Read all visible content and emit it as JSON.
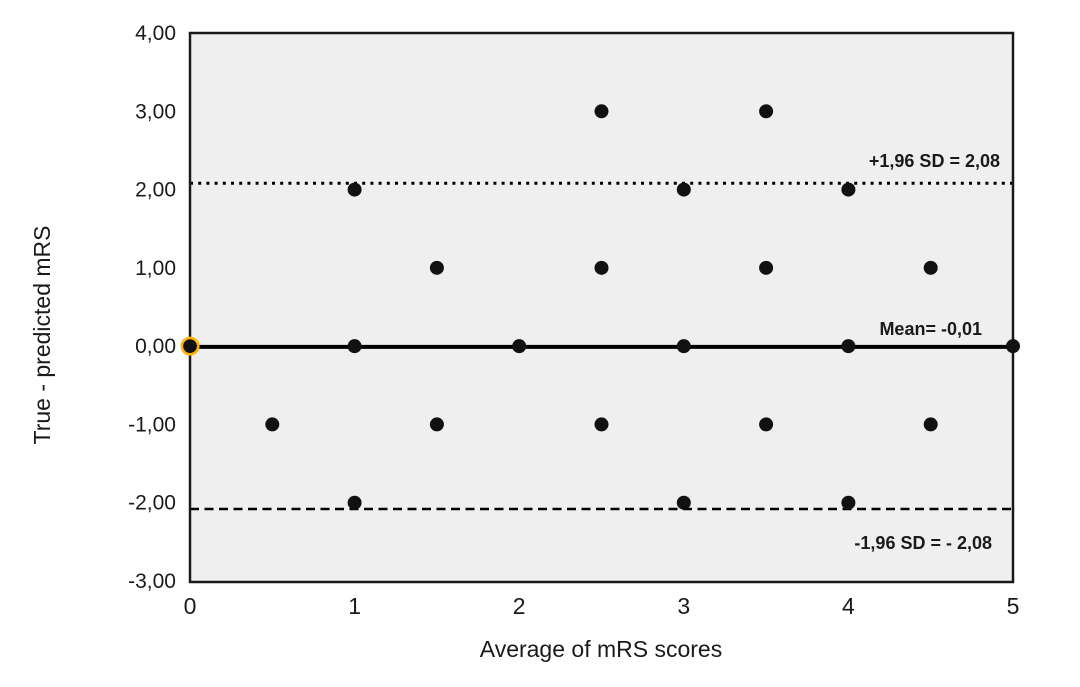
{
  "chart_data": {
    "type": "scatter",
    "title": "",
    "xlabel": "Average of mRS scores",
    "ylabel": "True - predicted mRS",
    "xlim": [
      0,
      5
    ],
    "ylim": [
      -3,
      4
    ],
    "grid": false,
    "legend": false,
    "x_ticks": [
      {
        "value": 0,
        "label": "0"
      },
      {
        "value": 1,
        "label": "1"
      },
      {
        "value": 2,
        "label": "2"
      },
      {
        "value": 3,
        "label": "3"
      },
      {
        "value": 4,
        "label": "4"
      },
      {
        "value": 5,
        "label": "5"
      }
    ],
    "y_ticks": [
      {
        "value": 4,
        "label": "4,00"
      },
      {
        "value": 3,
        "label": "3,00"
      },
      {
        "value": 2,
        "label": "2,00"
      },
      {
        "value": 1,
        "label": "1,00"
      },
      {
        "value": 0,
        "label": "0,00"
      },
      {
        "value": -1,
        "label": "-1,00"
      },
      {
        "value": -2,
        "label": "-2,00"
      },
      {
        "value": -3,
        "label": "-3,00"
      }
    ],
    "reference_lines": [
      {
        "name": "upper-limit",
        "value": 2.08,
        "style": "dotted",
        "label": "+1,96 SD = 2,08"
      },
      {
        "name": "mean",
        "value": -0.01,
        "style": "solid",
        "label": "Mean= -0,01"
      },
      {
        "name": "lower-limit",
        "value": -2.08,
        "style": "dashed",
        "label": "-1,96 SD = - 2,08"
      }
    ],
    "points": [
      [
        2.5,
        3
      ],
      [
        3.5,
        3
      ],
      [
        1,
        2
      ],
      [
        3,
        2
      ],
      [
        4,
        2
      ],
      [
        1.5,
        1
      ],
      [
        2.5,
        1
      ],
      [
        3.5,
        1
      ],
      [
        4.5,
        1
      ],
      [
        0,
        0
      ],
      [
        1,
        0
      ],
      [
        2,
        0
      ],
      [
        3,
        0
      ],
      [
        4,
        0
      ],
      [
        5,
        0
      ],
      [
        0.5,
        -1
      ],
      [
        1.5,
        -1
      ],
      [
        2.5,
        -1
      ],
      [
        3.5,
        -1
      ],
      [
        4.5,
        -1
      ],
      [
        1,
        -2
      ],
      [
        3,
        -2
      ],
      [
        4,
        -2
      ]
    ],
    "highlighted_point": {
      "x": 0,
      "y": 0,
      "ring_color": "#FFB300"
    },
    "colors": {
      "marker": "#111111",
      "line": "#000000",
      "plot_background": "#efefef",
      "page_background": "#ffffff",
      "frame": "#1a1a1a",
      "text": "#1a1a1a"
    }
  }
}
